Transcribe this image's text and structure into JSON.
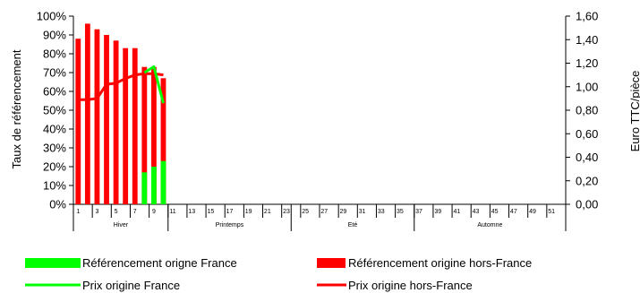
{
  "chart_data": {
    "type": "bar",
    "y_left": {
      "label": "Taux de référencement",
      "ticks": [
        "0%",
        "10%",
        "20%",
        "30%",
        "40%",
        "50%",
        "60%",
        "70%",
        "80%",
        "90%",
        "100%"
      ],
      "range": [
        0,
        100
      ]
    },
    "y_right": {
      "label": "Euro TTC/pièce",
      "ticks": [
        "0,00",
        "0,20",
        "0,40",
        "0,60",
        "0,80",
        "1,00",
        "1,20",
        "1,40",
        "1,60"
      ],
      "range": [
        0,
        1.6
      ]
    },
    "x": {
      "weeks": [
        1,
        2,
        3,
        4,
        5,
        6,
        7,
        8,
        9,
        10,
        11,
        12,
        13,
        14,
        15,
        16,
        17,
        18,
        19,
        20,
        21,
        22,
        23,
        24,
        25,
        26,
        27,
        28,
        29,
        30,
        31,
        32,
        33,
        34,
        35,
        36,
        37,
        38,
        39,
        40,
        41,
        42,
        43,
        44,
        45,
        46,
        47,
        48,
        49,
        50,
        51,
        52
      ],
      "tick_labels": [
        "1",
        "3",
        "5",
        "7",
        "9",
        "11",
        "13",
        "15",
        "17",
        "19",
        "21",
        "23",
        "25",
        "27",
        "29",
        "31",
        "33",
        "35",
        "37",
        "39",
        "41",
        "43",
        "45",
        "47",
        "49",
        "51"
      ],
      "seasons": [
        {
          "name": "Hiver",
          "start_week": 1,
          "end_week": 10
        },
        {
          "name": "Printemps",
          "start_week": 11,
          "end_week": 23
        },
        {
          "name": "Eté",
          "start_week": 24,
          "end_week": 36
        },
        {
          "name": "Automne",
          "start_week": 37,
          "end_week": 52
        }
      ]
    },
    "series": [
      {
        "name": "Référencement origine hors-France",
        "kind": "bar",
        "axis": "left",
        "color": "#ff0000",
        "weeks": [
          1,
          2,
          3,
          4,
          5,
          6,
          7,
          8,
          9,
          10
        ],
        "values": [
          88,
          96,
          93,
          90,
          87,
          83,
          83,
          73,
          73,
          67
        ]
      },
      {
        "name": "Référencement origine France",
        "kind": "bar",
        "axis": "left",
        "color": "#00ff00",
        "weeks": [
          8,
          9,
          10
        ],
        "values": [
          17,
          20,
          23
        ]
      },
      {
        "name": "Prix origine hors-France",
        "kind": "line",
        "axis": "right",
        "color": "#ff0000",
        "weeks": [
          1,
          2,
          3,
          4,
          5,
          6,
          7,
          8,
          9,
          10
        ],
        "values": [
          0.89,
          0.89,
          0.9,
          1.02,
          1.03,
          1.07,
          1.1,
          1.11,
          1.11,
          1.1
        ]
      },
      {
        "name": "Prix origine France",
        "kind": "line",
        "axis": "right",
        "color": "#00ff00",
        "weeks": [
          8,
          9,
          10
        ],
        "values": [
          1.12,
          1.17,
          0.86
        ]
      }
    ],
    "legend": {
      "placement": "bottom",
      "items": [
        {
          "label": "Référencement origne France",
          "color": "#00ff00",
          "shape": "box"
        },
        {
          "label": "Référencement origine hors-France",
          "color": "#ff0000",
          "shape": "box"
        },
        {
          "label": "Prix origine France",
          "color": "#00ff00",
          "shape": "line"
        },
        {
          "label": "Prix origine hors-France",
          "color": "#ff0000",
          "shape": "line"
        }
      ]
    },
    "grid": false
  }
}
